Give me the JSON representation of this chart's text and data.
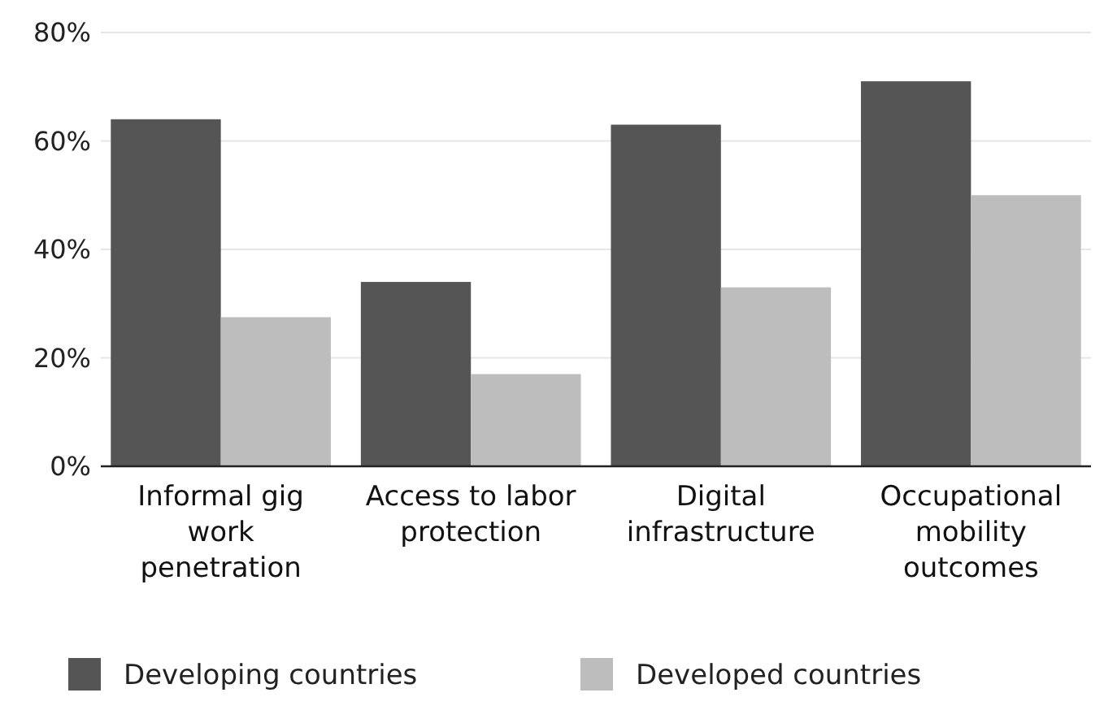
{
  "chart_data": {
    "type": "bar",
    "categories": [
      "Informal gig work penetration",
      "Access to labor protection",
      "Digital infrastructure",
      "Occupational mobility outcomes"
    ],
    "series": [
      {
        "name": "Developing countries",
        "color": "#555555",
        "values": [
          64,
          34,
          63,
          71
        ]
      },
      {
        "name": "Developed countries",
        "color": "#bdbdbd",
        "values": [
          27.5,
          17,
          33,
          50
        ]
      }
    ],
    "ylim": [
      0,
      80
    ],
    "yticks": [
      {
        "value": 0,
        "label": "0%"
      },
      {
        "value": 20,
        "label": "20%"
      },
      {
        "value": 40,
        "label": "40%"
      },
      {
        "value": 60,
        "label": "60%"
      },
      {
        "value": 80,
        "label": "80%"
      }
    ],
    "grid": "y",
    "legend": "bottom"
  }
}
